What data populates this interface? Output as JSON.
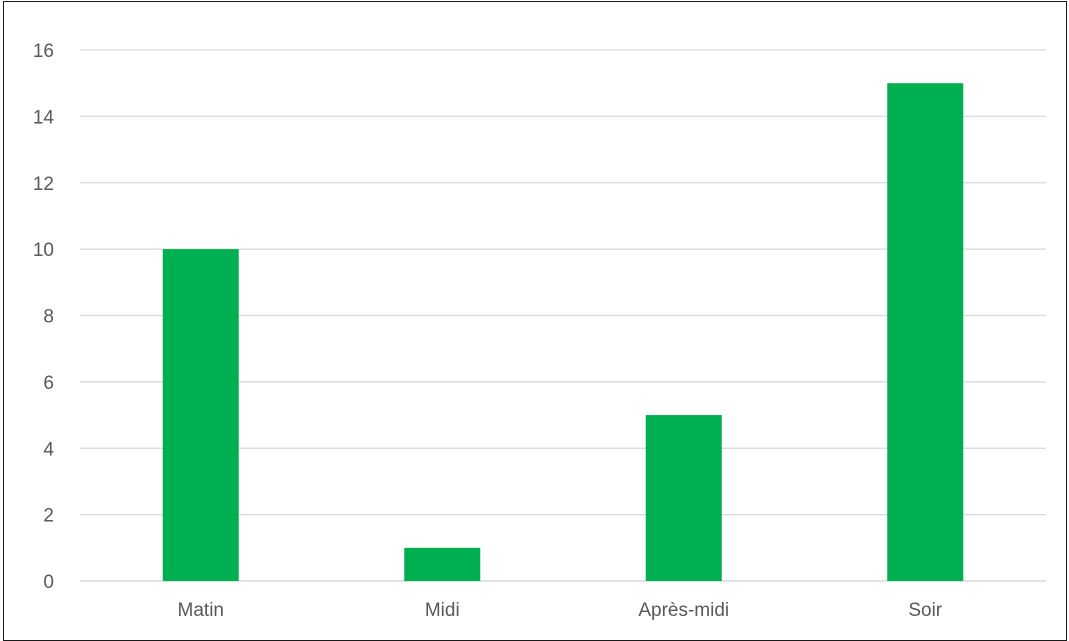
{
  "chart_data": {
    "type": "bar",
    "categories": [
      "Matin",
      "Midi",
      "Après-midi",
      "Soir"
    ],
    "values": [
      10,
      1,
      5,
      15
    ],
    "title": "",
    "xlabel": "",
    "ylabel": "",
    "ylim": [
      0,
      16
    ],
    "yticks": [
      "0",
      "2",
      "4",
      "6",
      "8",
      "10",
      "12",
      "14",
      "16"
    ],
    "grid": true,
    "legend": "none",
    "bar_color": "#00b050",
    "grid_color": "#d9d9d9"
  }
}
